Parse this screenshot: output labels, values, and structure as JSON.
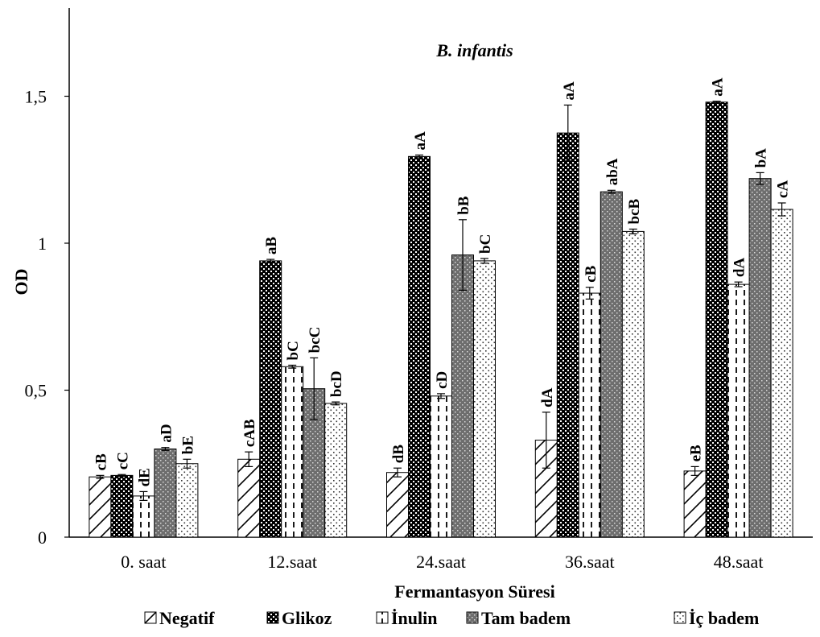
{
  "chart_data": {
    "type": "bar",
    "title": "B. infantis",
    "xlabel": "Fermantasyon Süresi",
    "ylabel": "OD",
    "ylim": [
      0,
      1.8
    ],
    "yticks": [
      0,
      0.5,
      1,
      1.5
    ],
    "ytick_labels": [
      "0",
      "0,5",
      "1",
      "1,5"
    ],
    "grid": false,
    "legend_position": "bottom",
    "categories": [
      "0. saat",
      "12.saat",
      "24.saat",
      "36.saat",
      "48.saat"
    ],
    "series": [
      {
        "name": "Negatif",
        "pattern": "diagonal",
        "values": [
          0.205,
          0.265,
          0.22,
          0.33,
          0.225
        ],
        "errors": [
          0.005,
          0.025,
          0.015,
          0.095,
          0.015
        ],
        "labels": [
          "cB",
          "cAB",
          "dB",
          "dA",
          "eB"
        ]
      },
      {
        "name": "Glikoz",
        "pattern": "dense-check",
        "values": [
          0.21,
          0.94,
          1.295,
          1.375,
          1.48
        ],
        "errors": [
          0.003,
          0.005,
          0.005,
          0.095,
          0.003
        ],
        "labels": [
          "cC",
          "aB",
          "aA",
          "aA",
          "aA"
        ]
      },
      {
        "name": "İnulin",
        "pattern": "dashed-vertical",
        "values": [
          0.14,
          0.58,
          0.48,
          0.83,
          0.86
        ],
        "errors": [
          0.015,
          0.005,
          0.008,
          0.02,
          0.008
        ],
        "labels": [
          "dE",
          "bC",
          "cD",
          "cB",
          "dA"
        ]
      },
      {
        "name": "Tam badem",
        "pattern": "dotted-gray",
        "values": [
          0.3,
          0.505,
          0.96,
          1.175,
          1.22
        ],
        "errors": [
          0.005,
          0.105,
          0.12,
          0.005,
          0.02
        ],
        "labels": [
          "aD",
          "bcC",
          "bB",
          "abA",
          "bA"
        ]
      },
      {
        "name": "İç badem",
        "pattern": "sparse-dots",
        "values": [
          0.25,
          0.455,
          0.94,
          1.04,
          1.115
        ],
        "errors": [
          0.015,
          0.005,
          0.008,
          0.008,
          0.022
        ],
        "labels": [
          "bE",
          "bcD",
          "bC",
          "bcB",
          "cA"
        ]
      }
    ]
  }
}
